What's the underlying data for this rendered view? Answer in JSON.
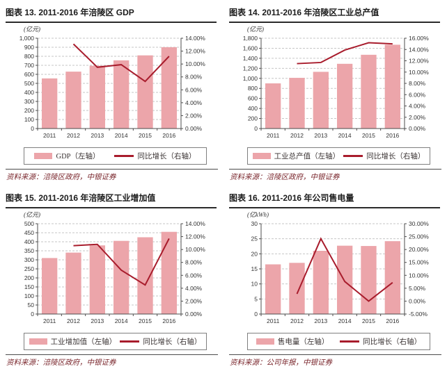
{
  "colors": {
    "bar": "#ECA5AA",
    "line": "#A81C2C",
    "grid": "#C6C6C6",
    "axis": "#4d4d4d",
    "title": "#1b1b1b",
    "source": "#7a262c"
  },
  "chart_data": [
    {
      "type": "bar",
      "combo": "bar+line",
      "title": "图表 13. 2011-2016 年涪陵区 GDP",
      "unit": "(亿元)",
      "categories": [
        "2011",
        "2012",
        "2013",
        "2014",
        "2015",
        "2016"
      ],
      "series": [
        {
          "name": "GDP（左轴）",
          "kind": "bar",
          "axis": "left",
          "values": [
            555,
            630,
            695,
            755,
            810,
            900
          ]
        },
        {
          "name": "同比增长（右轴）",
          "kind": "line",
          "axis": "right",
          "values": [
            null,
            13.1,
            9.5,
            9.9,
            7.3,
            11.2
          ]
        }
      ],
      "left_axis": {
        "min": 0,
        "max": 1000,
        "step": 100,
        "format": "number"
      },
      "right_axis": {
        "min": 0,
        "max": 14,
        "step": 2,
        "format": "percent"
      },
      "grid": true,
      "legend_position": "bottom",
      "source": "资料来源：涪陵区政府，中银证券"
    },
    {
      "type": "bar",
      "combo": "bar+line",
      "title": "图表 14. 2011-2016 年涪陵区工业总产值",
      "unit": "(亿元)",
      "categories": [
        "2011",
        "2012",
        "2013",
        "2014",
        "2015",
        "2016"
      ],
      "series": [
        {
          "name": "工业总产值（左轴）",
          "kind": "bar",
          "axis": "left",
          "values": [
            900,
            1010,
            1130,
            1290,
            1470,
            1670
          ]
        },
        {
          "name": "同比增长（右轴）",
          "kind": "line",
          "axis": "right",
          "values": [
            null,
            11.5,
            11.7,
            13.9,
            15.2,
            15.0
          ]
        }
      ],
      "left_axis": {
        "min": 0,
        "max": 1800,
        "step": 200,
        "format": "number"
      },
      "right_axis": {
        "min": 0,
        "max": 16,
        "step": 2,
        "format": "percent"
      },
      "grid": true,
      "legend_position": "bottom",
      "source": "资料来源：涪陵区政府，中银证券"
    },
    {
      "type": "bar",
      "combo": "bar+line",
      "title": "图表 15. 2011-2016 年涪陵区工业增加值",
      "unit": "(亿元)",
      "categories": [
        "2011",
        "2012",
        "2013",
        "2014",
        "2015",
        "2016"
      ],
      "series": [
        {
          "name": "工业增加值（左轴）",
          "kind": "bar",
          "axis": "left",
          "values": [
            310,
            340,
            380,
            405,
            425,
            455
          ]
        },
        {
          "name": "同比增长（右轴）",
          "kind": "line",
          "axis": "right",
          "values": [
            null,
            10.6,
            10.8,
            6.8,
            4.5,
            11.7
          ]
        }
      ],
      "left_axis": {
        "min": 0,
        "max": 500,
        "step": 50,
        "format": "number"
      },
      "right_axis": {
        "min": 0,
        "max": 14,
        "step": 2,
        "format": "percent"
      },
      "grid": true,
      "legend_position": "bottom",
      "source": "资料来源：涪陵区政府，中银证券"
    },
    {
      "type": "bar",
      "combo": "bar+line",
      "title": "图表 16. 2011-2016 年公司售电量",
      "unit": "(亿kWh)",
      "categories": [
        "2011",
        "2012",
        "2013",
        "2014",
        "2015",
        "2016"
      ],
      "series": [
        {
          "name": "售电量（左轴）",
          "kind": "bar",
          "axis": "left",
          "values": [
            16.5,
            17,
            21,
            22.7,
            22.6,
            24.2
          ]
        },
        {
          "name": "同比增长（右轴）",
          "kind": "line",
          "axis": "right",
          "values": [
            null,
            2.8,
            24.2,
            7.6,
            0.0,
            7.2
          ]
        }
      ],
      "left_axis": {
        "min": 0,
        "max": 30,
        "step": 5,
        "format": "number"
      },
      "right_axis": {
        "min": -5,
        "max": 30,
        "step": 5,
        "format": "percent"
      },
      "grid": true,
      "legend_position": "bottom",
      "source": "资料来源：公司年报，中银证券"
    }
  ]
}
